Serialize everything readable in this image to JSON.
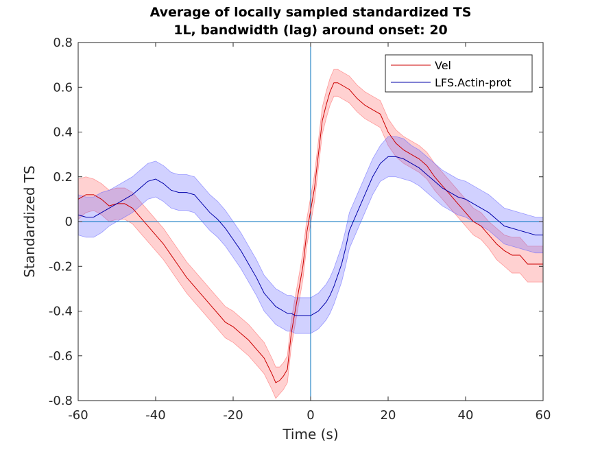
{
  "chart_data": {
    "type": "line",
    "title": "Average of locally sampled standardized TS",
    "subtitle": "1L, bandwidth (lag) around onset: 20",
    "xlabel": "Time (s)",
    "ylabel": "Standardized TS",
    "xlim": [
      -60,
      60
    ],
    "ylim": [
      -0.8,
      0.8
    ],
    "xticks": [
      -60,
      -40,
      -20,
      0,
      20,
      40,
      60
    ],
    "xtick_labels": [
      "-60",
      "-40",
      "-20",
      "0",
      "20",
      "40",
      "60"
    ],
    "yticks": [
      -0.8,
      -0.6,
      -0.4,
      -0.2,
      0,
      0.2,
      0.4,
      0.6,
      0.8
    ],
    "ytick_labels": [
      "-0.8",
      "-0.6",
      "-0.4",
      "-0.2",
      "0",
      "0.2",
      "0.4",
      "0.6",
      "0.8"
    ],
    "grid": false,
    "legend_position": "top-right",
    "reference_lines": {
      "x": 0,
      "y": 0
    },
    "x": [
      -60,
      -58,
      -56,
      -54,
      -52,
      -50,
      -48,
      -46,
      -44,
      -42,
      -40,
      -38,
      -36,
      -34,
      -32,
      -30,
      -28,
      -26,
      -24,
      -22,
      -20,
      -18,
      -16,
      -14,
      -12,
      -10,
      -9,
      -8,
      -7,
      -6,
      -5,
      -4,
      -3,
      -2,
      -1,
      0,
      1,
      2,
      3,
      4,
      5,
      6,
      7,
      8,
      9,
      10,
      12,
      14,
      16,
      18,
      20,
      22,
      24,
      26,
      28,
      30,
      32,
      34,
      36,
      38,
      40,
      42,
      44,
      46,
      48,
      50,
      52,
      54,
      56,
      58,
      60
    ],
    "series": [
      {
        "name": "Vel",
        "color": "#cc0000",
        "band_color": "#ff6666",
        "values": [
          0.1,
          0.12,
          0.12,
          0.1,
          0.07,
          0.08,
          0.08,
          0.06,
          0.02,
          -0.02,
          -0.06,
          -0.1,
          -0.15,
          -0.2,
          -0.25,
          -0.29,
          -0.33,
          -0.37,
          -0.41,
          -0.45,
          -0.47,
          -0.5,
          -0.53,
          -0.57,
          -0.61,
          -0.68,
          -0.72,
          -0.71,
          -0.69,
          -0.66,
          -0.5,
          -0.4,
          -0.3,
          -0.2,
          -0.05,
          0.05,
          0.15,
          0.3,
          0.45,
          0.52,
          0.58,
          0.62,
          0.62,
          0.61,
          0.6,
          0.59,
          0.55,
          0.52,
          0.5,
          0.48,
          0.4,
          0.35,
          0.32,
          0.3,
          0.28,
          0.25,
          0.2,
          0.16,
          0.12,
          0.08,
          0.04,
          0.0,
          -0.02,
          -0.06,
          -0.1,
          -0.13,
          -0.15,
          -0.15,
          -0.19,
          -0.19,
          -0.19
        ],
        "band": [
          0.09,
          0.08,
          0.07,
          0.07,
          0.07,
          0.07,
          0.07,
          0.07,
          0.07,
          0.07,
          0.07,
          0.07,
          0.07,
          0.07,
          0.07,
          0.07,
          0.07,
          0.07,
          0.07,
          0.07,
          0.07,
          0.07,
          0.07,
          0.07,
          0.07,
          0.07,
          0.07,
          0.06,
          0.06,
          0.06,
          0.06,
          0.06,
          0.06,
          0.06,
          0.06,
          0.06,
          0.06,
          0.06,
          0.06,
          0.06,
          0.06,
          0.06,
          0.06,
          0.06,
          0.06,
          0.06,
          0.06,
          0.06,
          0.06,
          0.06,
          0.06,
          0.06,
          0.06,
          0.06,
          0.06,
          0.06,
          0.06,
          0.06,
          0.06,
          0.06,
          0.06,
          0.06,
          0.06,
          0.06,
          0.07,
          0.07,
          0.08,
          0.08,
          0.08,
          0.08,
          0.08
        ]
      },
      {
        "name": "LFS.Actin-prot",
        "color": "#0000aa",
        "band_color": "#6666ff",
        "values": [
          0.03,
          0.02,
          0.02,
          0.04,
          0.06,
          0.08,
          0.1,
          0.12,
          0.15,
          0.18,
          0.19,
          0.17,
          0.14,
          0.13,
          0.13,
          0.12,
          0.08,
          0.04,
          0.01,
          -0.03,
          -0.08,
          -0.13,
          -0.19,
          -0.25,
          -0.32,
          -0.36,
          -0.38,
          -0.39,
          -0.4,
          -0.41,
          -0.41,
          -0.42,
          -0.42,
          -0.42,
          -0.42,
          -0.42,
          -0.41,
          -0.4,
          -0.38,
          -0.36,
          -0.33,
          -0.29,
          -0.24,
          -0.19,
          -0.12,
          -0.04,
          0.04,
          0.12,
          0.2,
          0.26,
          0.29,
          0.29,
          0.28,
          0.26,
          0.24,
          0.21,
          0.18,
          0.15,
          0.13,
          0.11,
          0.1,
          0.08,
          0.06,
          0.04,
          0.01,
          -0.02,
          -0.03,
          -0.04,
          -0.05,
          -0.06,
          -0.06
        ],
        "band": [
          0.09,
          0.09,
          0.09,
          0.09,
          0.08,
          0.08,
          0.08,
          0.08,
          0.08,
          0.08,
          0.08,
          0.08,
          0.08,
          0.08,
          0.08,
          0.08,
          0.08,
          0.08,
          0.08,
          0.08,
          0.08,
          0.08,
          0.08,
          0.08,
          0.08,
          0.08,
          0.08,
          0.08,
          0.08,
          0.08,
          0.08,
          0.08,
          0.08,
          0.08,
          0.08,
          0.08,
          0.08,
          0.08,
          0.08,
          0.08,
          0.08,
          0.08,
          0.08,
          0.08,
          0.08,
          0.08,
          0.08,
          0.08,
          0.08,
          0.08,
          0.09,
          0.09,
          0.09,
          0.08,
          0.08,
          0.08,
          0.08,
          0.08,
          0.08,
          0.08,
          0.08,
          0.08,
          0.08,
          0.08,
          0.08,
          0.08,
          0.08,
          0.08,
          0.08,
          0.08,
          0.08
        ]
      }
    ]
  }
}
